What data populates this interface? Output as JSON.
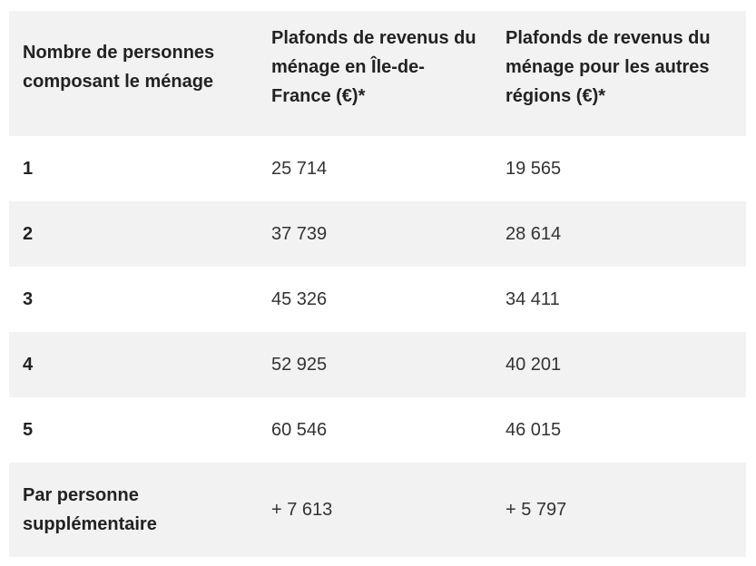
{
  "table": {
    "headers": [
      "Nombre de personnes composant le ménage",
      "Plafonds de revenus du ménage en Île-de-France (€)*",
      "Plafonds de revenus du ménage pour les autres régions (€)*"
    ],
    "rows": [
      {
        "label": "1",
        "idf": "25 714",
        "other": "19 565"
      },
      {
        "label": "2",
        "idf": "37 739",
        "other": "28 614"
      },
      {
        "label": "3",
        "idf": "45 326",
        "other": "34 411"
      },
      {
        "label": "4",
        "idf": "52 925",
        "other": "40 201"
      },
      {
        "label": "5",
        "idf": "60 546",
        "other": "46 015"
      },
      {
        "label": "Par personne supplémentaire",
        "idf": "+ 7 613",
        "other": "+ 5 797"
      }
    ]
  },
  "colors": {
    "header_bg": "#f2f2f2",
    "alt_row_bg": "#f2f2f2",
    "row_bg": "#ffffff",
    "text": "#222222"
  }
}
